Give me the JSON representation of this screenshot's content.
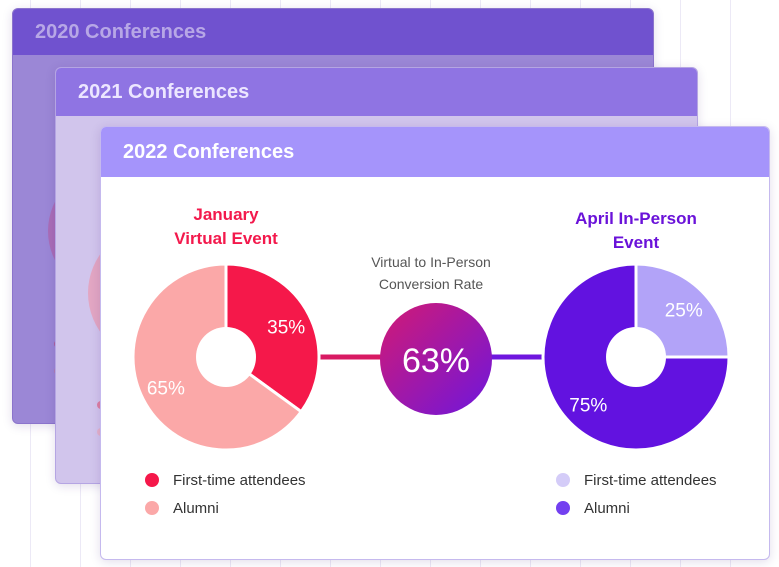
{
  "cards": {
    "y2020": {
      "title": "2020 Conferences"
    },
    "y2021": {
      "title": "2021 Conferences"
    },
    "y2022": {
      "title": "2022 Conferences"
    }
  },
  "colors": {
    "first_time_virtual": "#f5184a",
    "alumni_virtual": "#fba8a8",
    "first_time_inperson": "#b2a3f8",
    "alumni_inperson": "#6212e0",
    "conversion_gradient_start": "#d31a73",
    "conversion_gradient_end": "#6e16dd"
  },
  "left_event": {
    "title_line1": "January",
    "title_line2": "Virtual Event",
    "legend": [
      {
        "label": "First-time attendees",
        "color": "#f5184a"
      },
      {
        "label": "Alumni",
        "color": "#fba8a8"
      }
    ]
  },
  "right_event": {
    "title_line1": "April In-Person",
    "title_line2": "Event",
    "legend": [
      {
        "label": "First-time attendees",
        "color": "#d4ccf8"
      },
      {
        "label": "Alumni",
        "color": "#7340f0"
      }
    ]
  },
  "conversion": {
    "label_line1": "Virtual to In-Person",
    "label_line2": "Conversion Rate",
    "value": "63%"
  },
  "chart_data": [
    {
      "type": "pie",
      "title": "January Virtual Event",
      "categories": [
        "First-time attendees",
        "Alumni"
      ],
      "values": [
        35,
        65
      ],
      "labels": [
        "35%",
        "65%"
      ],
      "colors": [
        "#f5184a",
        "#fba8a8"
      ]
    },
    {
      "type": "pie",
      "title": "April In-Person Event",
      "categories": [
        "First-time attendees",
        "Alumni"
      ],
      "values": [
        25,
        75
      ],
      "labels": [
        "25%",
        "75%"
      ],
      "colors": [
        "#b2a3f8",
        "#6212e0"
      ]
    }
  ]
}
